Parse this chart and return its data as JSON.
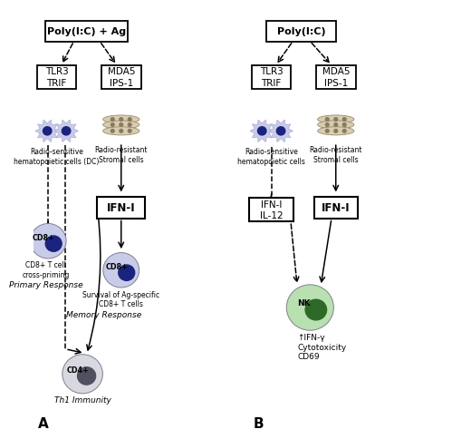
{
  "bg_color": "#ffffff",
  "panel_A_title": "Poly(I:C) + Ag",
  "panel_B_title": "Poly(I:C)",
  "panel_label_A": "A",
  "panel_label_B": "B",
  "box_tlr3_trif": "TLR3\nTRIF",
  "box_mda5_ips": "MDA5\nIPS-1",
  "box_ifni_A": "IFN-I",
  "box_ifni_IL12_B": "IFN-I\nIL-12",
  "box_ifni_B": "IFN-I",
  "label_radio_sensitive_A": "Radio-sensitive\nhematopoietic cells (DC)",
  "label_radio_resistant_A": "Radio-resistant\nStromal cells",
  "label_radio_sensitive_B": "Radio-sensitive\nhematopoietic cells",
  "label_radio_resistant_B": "Radio-resistant\nStromal cells",
  "label_cd8_text_A": "CD8+ T cell\ncross-priming",
  "label_primary": "Primary Response",
  "label_survival": "Survival of Ag-specific\nCD8+ T cells",
  "label_memory": "Memory Response",
  "label_th1": "Th1 Immunity",
  "label_nk_text": "↑IFN-γ\nCytotoxicity\nCD69",
  "dc_cell_color": "#c8cce8",
  "dc_spike_color": "#b0b4d8",
  "dc_nucleus_color": "#1a237e",
  "stromal_fill_color": "#d8cdb0",
  "stromal_edge_color": "#9a8a70",
  "stromal_nucleus_color": "#8a7a60",
  "cd8_body_color": "#c8cce8",
  "cd8_nucleus_color": "#1a237e",
  "cd4_body_color": "#d8d8e0",
  "cd4_nucleus_color": "#505060",
  "nk_body_color": "#b8e0b0",
  "nk_nucleus_color": "#2d6a27",
  "nk_body_edge": "#70a870"
}
